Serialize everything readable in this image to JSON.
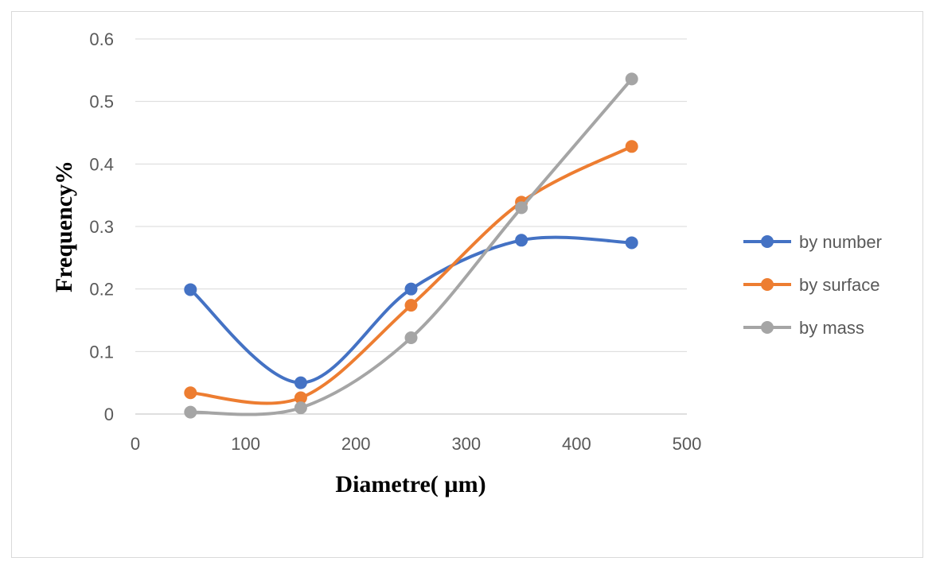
{
  "chart_data": {
    "type": "scatter",
    "title": "",
    "xlabel": "Diametre( µm)",
    "ylabel": "Frequency%",
    "xlim": [
      0,
      500
    ],
    "ylim": [
      0,
      0.6
    ],
    "x_ticks": [
      "0",
      "100",
      "200",
      "300",
      "400",
      "500"
    ],
    "y_ticks": [
      "0",
      "0.1",
      "0.2",
      "0.3",
      "0.4",
      "0.5",
      "0.6"
    ],
    "grid": true,
    "legend_position": "right",
    "smooth_lines": true,
    "x": [
      50,
      150,
      250,
      350,
      450
    ],
    "series": [
      {
        "name": "by number",
        "color": "#4472C4",
        "values": [
          0.199,
          0.05,
          0.2,
          0.278,
          0.274
        ]
      },
      {
        "name": "by surface",
        "color": "#ED7D31",
        "values": [
          0.034,
          0.026,
          0.174,
          0.339,
          0.428
        ]
      },
      {
        "name": "by mass",
        "color": "#A5A5A5",
        "values": [
          0.003,
          0.01,
          0.122,
          0.33,
          0.536
        ]
      }
    ]
  }
}
